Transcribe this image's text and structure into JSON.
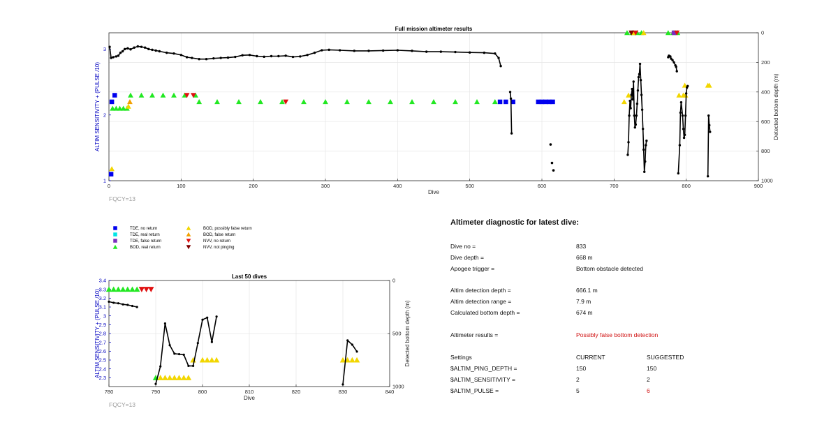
{
  "colors": {
    "tde_no_return": "#0000ee",
    "tde_real_return": "#00e5e5",
    "tde_false_return": "#7b2fbe",
    "bod_real_return": "#22e822",
    "bod_possibly_false": "#f2d600",
    "bod_false_return": "#f2a000",
    "nvv_no_return": "#e01010",
    "nvv_not_pinging": "#800000",
    "depth_line": "#000000",
    "left_axis": "#0000c0",
    "alert": "#d01010"
  },
  "chart_data": [
    {
      "type": "scatter",
      "title": "Full mission altimeter results",
      "xlabel": "Dive",
      "ylabel_left": "ALTIM SENSITIVITY + (PULSE /10)",
      "ylabel_right": "Detected bottom depth (m)",
      "xlim": [
        0,
        900
      ],
      "ylim_left": [
        1,
        3.25
      ],
      "ylim_right": [
        1000,
        0
      ],
      "xticks": [
        "0",
        "100",
        "200",
        "300",
        "400",
        "500",
        "600",
        "700",
        "800",
        "900"
      ],
      "yticks_left": [
        "1",
        "2",
        "3"
      ],
      "yticks_right": [
        "0",
        "200",
        "400",
        "600",
        "800",
        "1000"
      ],
      "grid": true,
      "footnote": "FQCY=13",
      "depth_line_segments": [
        [
          [
            1,
            95
          ],
          [
            3,
            170
          ],
          [
            6,
            165
          ],
          [
            10,
            160
          ],
          [
            13,
            155
          ],
          [
            16,
            135
          ],
          [
            19,
            125
          ],
          [
            22,
            110
          ],
          [
            26,
            105
          ],
          [
            30,
            112
          ],
          [
            35,
            100
          ],
          [
            40,
            92
          ],
          [
            45,
            95
          ],
          [
            50,
            100
          ],
          [
            55,
            110
          ],
          [
            60,
            115
          ],
          [
            65,
            120
          ],
          [
            70,
            125
          ],
          [
            80,
            135
          ],
          [
            90,
            140
          ],
          [
            100,
            150
          ],
          [
            108,
            165
          ],
          [
            115,
            170
          ],
          [
            125,
            178
          ],
          [
            135,
            178
          ],
          [
            145,
            173
          ],
          [
            155,
            170
          ],
          [
            165,
            168
          ],
          [
            175,
            163
          ],
          [
            185,
            152
          ],
          [
            195,
            150
          ],
          [
            205,
            158
          ],
          [
            215,
            162
          ],
          [
            225,
            158
          ],
          [
            235,
            158
          ],
          [
            245,
            155
          ],
          [
            255,
            163
          ],
          [
            265,
            160
          ],
          [
            275,
            150
          ],
          [
            285,
            135
          ],
          [
            295,
            118
          ],
          [
            305,
            115
          ],
          [
            320,
            118
          ],
          [
            340,
            122
          ],
          [
            360,
            122
          ],
          [
            380,
            120
          ],
          [
            400,
            118
          ],
          [
            420,
            122
          ],
          [
            440,
            128
          ],
          [
            460,
            128
          ],
          [
            480,
            130
          ],
          [
            500,
            133
          ],
          [
            520,
            135
          ],
          [
            535,
            140
          ],
          [
            540,
            170
          ],
          [
            543,
            225
          ]
        ],
        [
          [
            556,
            400
          ],
          [
            557,
            445
          ],
          [
            558,
            680
          ]
        ],
        [
          [
            719,
            825
          ],
          [
            720,
            740
          ],
          [
            721,
            560
          ],
          [
            722,
            460
          ],
          [
            723,
            510
          ],
          [
            724,
            420
          ],
          [
            725,
            380
          ],
          [
            726,
            450
          ],
          [
            727,
            330
          ],
          [
            728,
            560
          ],
          [
            729,
            640
          ],
          [
            730,
            620
          ],
          [
            731,
            560
          ],
          [
            732,
            480
          ],
          [
            733,
            390
          ],
          [
            734,
            300
          ],
          [
            735,
            280
          ],
          [
            736,
            210
          ],
          [
            737,
            320
          ],
          [
            738,
            420
          ],
          [
            739,
            520
          ],
          [
            740,
            650
          ],
          [
            741,
            790
          ],
          [
            742,
            940
          ],
          [
            743,
            870
          ],
          [
            744,
            760
          ],
          [
            745,
            730
          ]
        ],
        [
          [
            775,
            165
          ],
          [
            776,
            155
          ],
          [
            777,
            160
          ],
          [
            778,
            160
          ],
          [
            779,
            175
          ],
          [
            781,
            185
          ],
          [
            783,
            200
          ],
          [
            785,
            220
          ],
          [
            786,
            230
          ],
          [
            787,
            260
          ]
        ],
        [
          [
            789,
            950
          ],
          [
            791,
            760
          ],
          [
            792,
            540
          ],
          [
            793,
            470
          ],
          [
            795,
            560
          ],
          [
            796,
            650
          ],
          [
            797,
            710
          ],
          [
            798,
            690
          ],
          [
            799,
            560
          ],
          [
            800,
            410
          ],
          [
            801,
            370
          ],
          [
            802,
            360
          ]
        ],
        [
          [
            830,
            970
          ],
          [
            831,
            560
          ],
          [
            832,
            625
          ],
          [
            833,
            670
          ]
        ]
      ],
      "depth_points": [
        [
          612,
          755
        ],
        [
          614,
          880
        ],
        [
          616,
          930
        ]
      ],
      "tde_no_return": [
        [
          3,
          1.1
        ],
        [
          4,
          2.2
        ],
        [
          8,
          2.3
        ],
        [
          542,
          2.2
        ],
        [
          550,
          2.2
        ],
        [
          560,
          2.2
        ],
        [
          595,
          2.2
        ],
        [
          600,
          2.2
        ],
        [
          605,
          2.2
        ],
        [
          610,
          2.2
        ],
        [
          615,
          2.2
        ]
      ],
      "bod_real_return": [
        [
          5,
          2.1
        ],
        [
          10,
          2.1
        ],
        [
          15,
          2.1
        ],
        [
          20,
          2.1
        ],
        [
          25,
          2.1
        ],
        [
          30,
          2.3
        ],
        [
          45,
          2.3
        ],
        [
          60,
          2.3
        ],
        [
          75,
          2.3
        ],
        [
          90,
          2.3
        ],
        [
          105,
          2.3
        ],
        [
          120,
          2.3
        ],
        [
          125,
          2.2
        ],
        [
          150,
          2.2
        ],
        [
          180,
          2.2
        ],
        [
          210,
          2.2
        ],
        [
          240,
          2.2
        ],
        [
          270,
          2.2
        ],
        [
          300,
          2.2
        ],
        [
          330,
          2.2
        ],
        [
          360,
          2.2
        ],
        [
          390,
          2.2
        ],
        [
          420,
          2.2
        ],
        [
          450,
          2.2
        ],
        [
          480,
          2.2
        ],
        [
          510,
          2.2
        ],
        [
          535,
          2.2
        ],
        [
          718,
          3.25
        ],
        [
          725,
          3.25
        ],
        [
          732,
          3.25
        ],
        [
          738,
          3.25
        ],
        [
          775,
          3.25
        ],
        [
          782,
          3.25
        ],
        [
          788,
          3.25
        ]
      ],
      "bod_possibly_false": [
        [
          4,
          1.18
        ],
        [
          27,
          2.13
        ],
        [
          714,
          2.2
        ],
        [
          720,
          2.3
        ],
        [
          727,
          3.25
        ],
        [
          741,
          3.25
        ],
        [
          790,
          2.3
        ],
        [
          796,
          2.3
        ],
        [
          798,
          2.45
        ],
        [
          799,
          2.3
        ],
        [
          830,
          2.45
        ],
        [
          832,
          2.45
        ]
      ],
      "bod_false_return": [
        [
          29,
          2.2
        ]
      ],
      "tde_false_return": [
        [
          783,
          3.25
        ]
      ],
      "nvv_no_return": [
        [
          108,
          2.3
        ],
        [
          117,
          2.3
        ],
        [
          245,
          2.2
        ],
        [
          730,
          3.25
        ],
        [
          787,
          3.25
        ]
      ],
      "nvv_not_pinging": [
        [
          724,
          3.25
        ]
      ]
    },
    {
      "type": "scatter",
      "title": "Last 50 dives",
      "xlabel": "Dive",
      "ylabel_left": "ALTIM SENSITIVITY + (PULSE /10)",
      "ylabel_right": "Detected bottom depth (m)",
      "xlim": [
        780,
        840
      ],
      "ylim_left": [
        2.2,
        3.4
      ],
      "ylim_right": [
        1000,
        0
      ],
      "xticks": [
        "780",
        "790",
        "800",
        "810",
        "820",
        "830",
        "840"
      ],
      "yticks_left": [
        "2.3",
        "2.4",
        "2.5",
        "2.6",
        "2.7",
        "2.8",
        "2.9",
        "3",
        "3.1",
        "3.2",
        "3.3",
        "3.4"
      ],
      "yticks_right": [
        "0",
        "500",
        "1000"
      ],
      "grid": true,
      "footnote": "FQCY=13",
      "depth_line_segments": [
        [
          [
            780,
            200
          ],
          [
            781,
            210
          ],
          [
            782,
            215
          ],
          [
            783,
            225
          ],
          [
            784,
            230
          ],
          [
            785,
            240
          ],
          [
            786,
            250
          ]
        ],
        [
          [
            790,
            975
          ],
          [
            791,
            810
          ],
          [
            792,
            405
          ],
          [
            793,
            610
          ],
          [
            794,
            690
          ],
          [
            795,
            695
          ],
          [
            796,
            700
          ],
          [
            797,
            805
          ],
          [
            798,
            805
          ],
          [
            799,
            590
          ],
          [
            800,
            370
          ],
          [
            801,
            350
          ],
          [
            802,
            580
          ],
          [
            803,
            340
          ]
        ],
        [
          [
            830,
            980
          ],
          [
            831,
            565
          ],
          [
            832,
            605
          ],
          [
            833,
            670
          ]
        ]
      ],
      "bod_real_return": [
        [
          780,
          3.3
        ],
        [
          781,
          3.3
        ],
        [
          782,
          3.3
        ],
        [
          783,
          3.3
        ],
        [
          784,
          3.3
        ],
        [
          785,
          3.3
        ],
        [
          786,
          3.3
        ],
        [
          790,
          2.3
        ]
      ],
      "nvv_no_return": [
        [
          787,
          3.3
        ],
        [
          788,
          3.3
        ],
        [
          789,
          3.3
        ]
      ],
      "bod_possibly_false": [
        [
          791,
          2.3
        ],
        [
          792,
          2.3
        ],
        [
          793,
          2.3
        ],
        [
          794,
          2.3
        ],
        [
          795,
          2.3
        ],
        [
          796,
          2.3
        ],
        [
          797,
          2.3
        ],
        [
          798,
          2.5
        ],
        [
          800,
          2.5
        ],
        [
          801,
          2.5
        ],
        [
          802,
          2.5
        ],
        [
          803,
          2.5
        ],
        [
          830,
          2.5
        ],
        [
          831,
          2.5
        ],
        [
          832,
          2.5
        ],
        [
          833,
          2.5
        ]
      ]
    }
  ],
  "legend": [
    {
      "key": "tde_no_return",
      "marker": "square",
      "label": "TDE, no return"
    },
    {
      "key": "tde_real_return",
      "marker": "square",
      "label": "TDE, real return"
    },
    {
      "key": "tde_false_return",
      "marker": "square",
      "label": "TDE, false return"
    },
    {
      "key": "bod_real_return",
      "marker": "triangle-up",
      "label": "BOD, real return"
    },
    {
      "key": "bod_possibly_false",
      "marker": "triangle-up",
      "label": "BOD, possibly false return"
    },
    {
      "key": "bod_false_return",
      "marker": "triangle-up",
      "label": "BOD, false return"
    },
    {
      "key": "nvv_no_return",
      "marker": "triangle-down",
      "label": "NVV, no return"
    },
    {
      "key": "nvv_not_pinging",
      "marker": "triangle-down",
      "label": "NVV, not pinging"
    }
  ],
  "diagnostic": {
    "heading": "Altimeter diagnostic for latest dive:",
    "dive_no_label": "Dive no =",
    "dive_no": "833",
    "dive_depth_label": "Dive depth =",
    "dive_depth": "668 m",
    "apogee_label": "Apogee trigger =",
    "apogee": "Bottom obstacle detected",
    "altim_depth_label": "Altim detection depth =",
    "altim_depth": "666.1 m",
    "altim_range_label": "Altim detection range =",
    "altim_range": "7.9 m",
    "calc_depth_label": "Calculated bottom depth =",
    "calc_depth": "674 m",
    "results_label": "Altimeter results =",
    "results": "Possibly false bottom detection",
    "settings_label": "Settings",
    "current_header": "CURRENT",
    "suggested_header": "SUGGESTED",
    "settings": [
      {
        "name": "$ALTIM_PING_DEPTH =",
        "current": "150",
        "suggested": "150",
        "flag": false
      },
      {
        "name": "$ALTIM_SENSITIVITY =",
        "current": "2",
        "suggested": "2",
        "flag": false
      },
      {
        "name": "$ALTIM_PULSE =",
        "current": "5",
        "suggested": "6",
        "flag": true
      }
    ]
  }
}
